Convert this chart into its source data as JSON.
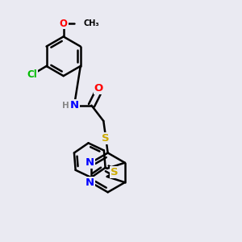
{
  "bg_color": "#eaeaf2",
  "bond_color": "#000000",
  "bond_width": 1.8,
  "atom_colors": {
    "N": "#0000ff",
    "O": "#ff0000",
    "S": "#ccaa00",
    "Cl": "#00bb00",
    "H": "#888888"
  },
  "font_size": 8.5,
  "fig_width": 3.0,
  "fig_height": 3.0,
  "dpi": 100
}
